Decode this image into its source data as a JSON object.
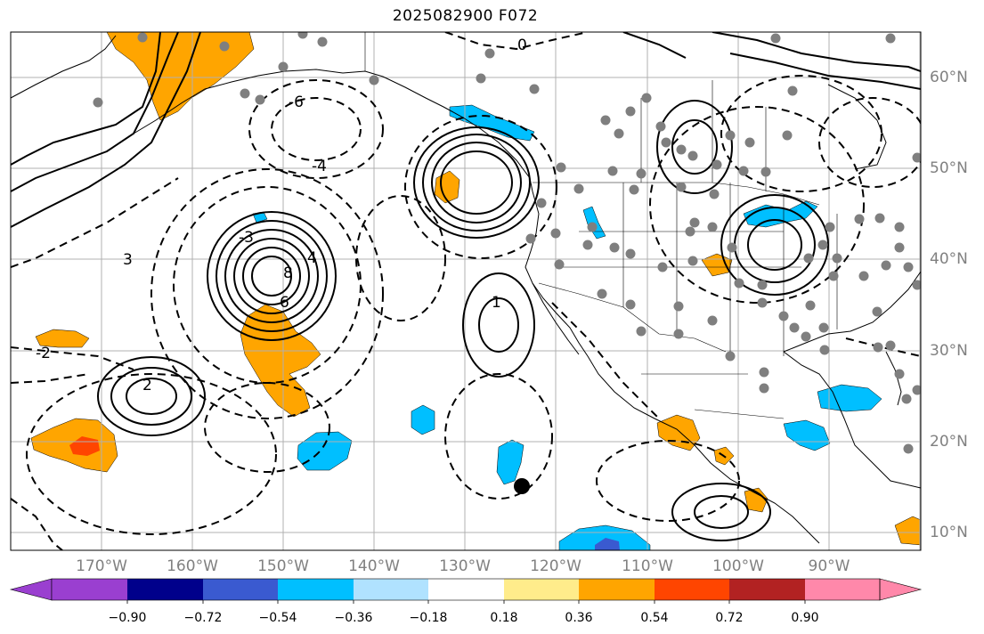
{
  "title": "2025082900 F072",
  "axes": {
    "lon_labels": [
      "170°W",
      "160°W",
      "150°W",
      "140°W",
      "130°W",
      "120°W",
      "110°W",
      "100°W",
      "90°W"
    ],
    "lat_labels": [
      "60°N",
      "50°N",
      "40°N",
      "30°N",
      "20°N",
      "10°N"
    ]
  },
  "colorbar": {
    "colors": [
      "#9a3fd0",
      "#00008b",
      "#3a5ad0",
      "#00bfff",
      "#b0e2ff",
      "#ffffff",
      "#ffec8b",
      "#ffa500",
      "#ff4500",
      "#b22222",
      "#ff88aa"
    ],
    "ticks": [
      "−0.90",
      "−0.72",
      "−0.54",
      "−0.36",
      "−0.18",
      "0.18",
      "0.36",
      "0.54",
      "0.72",
      "0.90"
    ]
  },
  "contour_labels": [
    "8",
    "6",
    "4",
    "3",
    "2",
    "1",
    "0",
    "-2",
    "-3",
    "-4",
    "-6"
  ],
  "colors": {
    "orange": "#ffa500",
    "red_orange": "#ff4500",
    "deep_sky": "#00bfff",
    "royal_blue": "#3a5ad0",
    "station_gray": "#7f7f7f",
    "grid_gray": "#b0b0b0"
  },
  "storm_marker": "tropical-cyclone-center"
}
